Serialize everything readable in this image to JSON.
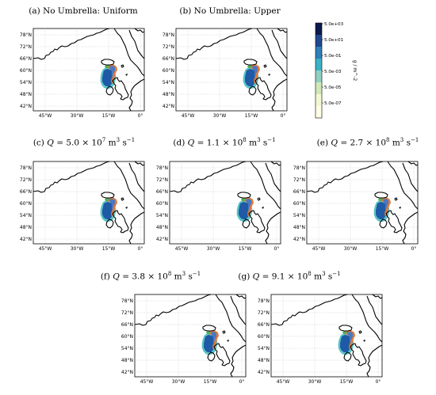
{
  "panels": [
    {
      "id": "a",
      "caption": "(a) No Umbrella: Uniform"
    },
    {
      "id": "b",
      "caption": "(b) No Umbrella: Upper"
    },
    {
      "id": "c",
      "caption_prefix": "(c) ",
      "caption_q": "Q",
      "caption_eq": " = 5.0 × 10",
      "caption_exp": "7",
      "caption_unit": " m",
      "caption_unit_exp": "3",
      "caption_s": " s",
      "caption_s_exp": "−1"
    },
    {
      "id": "d",
      "caption_prefix": "(d) ",
      "caption_q": "Q",
      "caption_eq": " = 1.1 × 10",
      "caption_exp": "8",
      "caption_unit": " m",
      "caption_unit_exp": "3",
      "caption_s": " s",
      "caption_s_exp": "−1"
    },
    {
      "id": "e",
      "caption_prefix": "(e) ",
      "caption_q": "Q",
      "caption_eq": " = 2.7 × 10",
      "caption_exp": "8",
      "caption_unit": " m",
      "caption_unit_exp": "3",
      "caption_s": " s",
      "caption_s_exp": "−1"
    },
    {
      "id": "f",
      "caption_prefix": "(f) ",
      "caption_q": "Q",
      "caption_eq": " = 3.8 × 10",
      "caption_exp": "8",
      "caption_unit": " m",
      "caption_unit_exp": "3",
      "caption_s": " s",
      "caption_s_exp": "−1"
    },
    {
      "id": "g",
      "caption_prefix": "(g) ",
      "caption_q": "Q",
      "caption_eq": " = 9.1 × 10",
      "caption_exp": "8",
      "caption_unit": " m",
      "caption_unit_exp": "3",
      "caption_s": " s",
      "caption_s_exp": "−1"
    }
  ],
  "map": {
    "lat_labels": [
      "78°N",
      "72°N",
      "66°N",
      "60°N",
      "54°N",
      "48°N",
      "42°N"
    ],
    "lon_labels": [
      "45°W",
      "30°W",
      "15°W",
      "0°"
    ]
  },
  "colorbar": {
    "label": "g / m^-2",
    "ticks": [
      "5.0e+03",
      "5.0e+01",
      "5.0e-01",
      "5.0e-03",
      "5.0e-05",
      "5.0e-07"
    ],
    "colors": [
      "#0b1b4b",
      "#21498f",
      "#2f7fb8",
      "#3cb2c6",
      "#8fd0c2",
      "#cfe9b6",
      "#f3f8d2",
      "#fffde6"
    ]
  },
  "plume_colors": {
    "outer": "#5cc7c9",
    "mid": "#1f5aa6",
    "core": "#e07a3a",
    "source": "#4fae5c"
  }
}
